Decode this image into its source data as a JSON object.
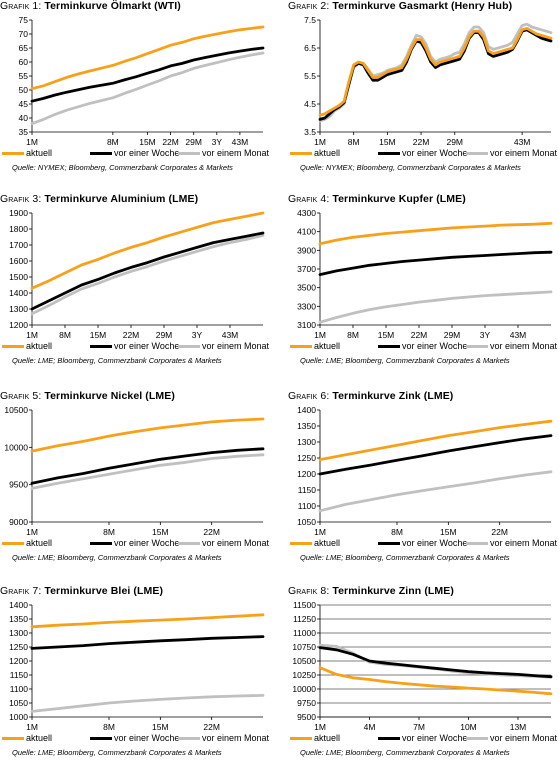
{
  "panels": [
    {
      "id": "g1",
      "prefix": "Grafik 1:",
      "title": "Terminkurve Ölmarkt (WTI)",
      "source": "Quelle: NYMEX; Bloomberg, Commerzbank Corporates & Markets"
    },
    {
      "id": "g2",
      "prefix": "Grafik 2:",
      "title": "Terminkurve Gasmarkt (Henry Hub)",
      "source": "Quelle: NYMEX; Bloomberg, Commerzbank Corporates & Markets"
    },
    {
      "id": "g3",
      "prefix": "Grafik 3:",
      "title": "Terminkurve Aluminium (LME)",
      "source": "Quelle: LME; Bloomberg, Commerzbank Corporates & Markets"
    },
    {
      "id": "g4",
      "prefix": "Grafik 4:",
      "title": "Terminkurve Kupfer (LME)",
      "source": "Quelle: LME; Bloomberg, Commerzbank Corporates & Markets"
    },
    {
      "id": "g5",
      "prefix": "Grafik 5:",
      "title": "Terminkurve Nickel (LME)",
      "source": "Quelle: LME; Bloomberg, Commerzbank Corporates & Markets"
    },
    {
      "id": "g6",
      "prefix": "Grafik 6:",
      "title": "Terminkurve Zink (LME)",
      "source": "Quelle: LME; Bloomberg, Commerzbank Corporates & Markets"
    },
    {
      "id": "g7",
      "prefix": "Grafik 7:",
      "title": "Terminkurve Blei (LME)",
      "source": "Quelle: LME; Bloomberg, Commerzbank Corporates & Markets"
    },
    {
      "id": "g8",
      "prefix": "Grafik 8:",
      "title": "Terminkurve Zinn (LME)",
      "source": "Quelle: LME; Bloomberg, Commerzbank Corporates & Markets"
    }
  ],
  "legend": [
    "aktuell",
    "vor einer Woche",
    "vor einem Monat"
  ],
  "colors": {
    "aktuell": "#f7a11a",
    "woche": "#000000",
    "monat": "#c0c0c0",
    "grid": "#000000"
  },
  "chart_data": [
    {
      "type": "line",
      "title": "Terminkurve Ölmarkt (WTI)",
      "x": [
        "1M",
        "2M",
        "3M",
        "4M",
        "5M",
        "6M",
        "7M",
        "8M",
        "10M",
        "12M",
        "15M",
        "18M",
        "22M",
        "25M",
        "29M",
        "32M",
        "3Y",
        "40M",
        "43M",
        "46M",
        "49M"
      ],
      "xticks": [
        "1M",
        "8M",
        "15M",
        "22M",
        "29M",
        "3Y",
        "43M"
      ],
      "ylim": [
        35,
        75
      ],
      "yticks": [
        35,
        40,
        45,
        50,
        55,
        60,
        65,
        70,
        75
      ],
      "grid": false,
      "series": [
        {
          "name": "aktuell",
          "values": [
            50.5,
            51.5,
            53,
            54.5,
            55.7,
            56.8,
            57.8,
            58.8,
            60.2,
            61.5,
            63,
            64.5,
            66,
            67,
            68.3,
            69.2,
            70,
            70.8,
            71.5,
            72,
            72.5
          ]
        },
        {
          "name": "vor einer Woche",
          "values": [
            46,
            47,
            48.2,
            49.2,
            50.1,
            51,
            51.7,
            52.4,
            53.6,
            54.7,
            56,
            57.2,
            58.6,
            59.5,
            60.7,
            61.6,
            62.4,
            63.2,
            63.9,
            64.5,
            65
          ]
        },
        {
          "name": "vor einem Monat",
          "values": [
            38,
            39.5,
            41.3,
            42.8,
            44,
            45.2,
            46.2,
            47.2,
            48.8,
            50.2,
            51.8,
            53.3,
            55,
            56.2,
            57.7,
            58.8,
            59.8,
            60.8,
            61.7,
            62.5,
            63.2
          ]
        }
      ]
    },
    {
      "type": "line",
      "title": "Terminkurve Gasmarkt (Henry Hub)",
      "x": [
        "1M",
        "2M",
        "3M",
        "4M",
        "5M",
        "6M",
        "7M",
        "8M",
        "9M",
        "10M",
        "11M",
        "12M",
        "13M",
        "14M",
        "15M",
        "16M",
        "17M",
        "18M",
        "19M",
        "20M",
        "21M",
        "22M",
        "23M",
        "24M",
        "25M",
        "26M",
        "27M",
        "28M",
        "29M",
        "30M",
        "31M",
        "32M",
        "33M",
        "34M",
        "35M",
        "36M",
        "37M",
        "38M",
        "39M",
        "40M",
        "41M",
        "42M",
        "43M",
        "44M",
        "45M",
        "46M",
        "47M",
        "48M",
        "49M"
      ],
      "xticks": [
        "1M",
        "8M",
        "15M",
        "22M",
        "29M",
        "3Y",
        "43M"
      ],
      "ylim": [
        3.5,
        7.5
      ],
      "yticks": [
        3.5,
        4.5,
        5.5,
        6.5,
        7.5
      ],
      "grid": false,
      "series": [
        {
          "name": "aktuell",
          "values": [
            4.1,
            4.15,
            4.25,
            4.35,
            4.45,
            4.6,
            5.3,
            5.9,
            6.0,
            5.95,
            5.7,
            5.45,
            5.45,
            5.55,
            5.65,
            5.7,
            5.75,
            5.8,
            6.1,
            6.5,
            6.8,
            6.8,
            6.5,
            6.1,
            5.9,
            6.0,
            6.05,
            6.1,
            6.15,
            6.2,
            6.5,
            6.9,
            7.1,
            7.1,
            6.9,
            6.4,
            6.3,
            6.35,
            6.4,
            6.45,
            6.5,
            6.8,
            7.15,
            7.2,
            7.1,
            7.0,
            6.95,
            6.9,
            6.85
          ]
        },
        {
          "name": "vor einer Woche",
          "values": [
            3.95,
            4.0,
            4.15,
            4.3,
            4.4,
            4.55,
            5.2,
            5.85,
            5.95,
            5.9,
            5.6,
            5.35,
            5.35,
            5.45,
            5.55,
            5.6,
            5.65,
            5.7,
            6.0,
            6.45,
            6.75,
            6.7,
            6.4,
            6.0,
            5.8,
            5.9,
            5.95,
            6.0,
            6.05,
            6.1,
            6.4,
            6.85,
            7.05,
            7.05,
            6.8,
            6.3,
            6.2,
            6.25,
            6.3,
            6.35,
            6.45,
            6.75,
            7.1,
            7.15,
            7.05,
            6.95,
            6.85,
            6.8,
            6.75
          ]
        },
        {
          "name": "vor einem Monat",
          "values": [
            3.9,
            3.95,
            4.05,
            4.25,
            4.35,
            4.5,
            5.25,
            5.8,
            5.95,
            5.95,
            5.75,
            5.5,
            5.55,
            5.6,
            5.7,
            5.75,
            5.8,
            5.9,
            6.2,
            6.6,
            6.95,
            6.9,
            6.65,
            6.2,
            6.0,
            6.1,
            6.15,
            6.2,
            6.3,
            6.35,
            6.65,
            7.05,
            7.25,
            7.25,
            7.05,
            6.55,
            6.45,
            6.5,
            6.55,
            6.6,
            6.7,
            7.0,
            7.3,
            7.35,
            7.25,
            7.2,
            7.15,
            7.1,
            7.05
          ]
        }
      ]
    },
    {
      "type": "line",
      "title": "Terminkurve Aluminium (LME)",
      "x": [
        "1M",
        "4M",
        "8M",
        "12M",
        "15M",
        "19M",
        "22M",
        "25M",
        "29M",
        "32M",
        "3Y",
        "40M",
        "43M",
        "46M",
        "49M"
      ],
      "xticks": [
        "1M",
        "8M",
        "15M",
        "22M",
        "29M",
        "3Y",
        "43M"
      ],
      "ylim": [
        1200,
        1900
      ],
      "yticks": [
        1200,
        1300,
        1400,
        1500,
        1600,
        1700,
        1800,
        1900
      ],
      "grid": false,
      "series": [
        {
          "name": "aktuell",
          "values": [
            1430,
            1475,
            1525,
            1575,
            1610,
            1650,
            1685,
            1715,
            1750,
            1780,
            1810,
            1840,
            1860,
            1880,
            1900
          ]
        },
        {
          "name": "vor einer Woche",
          "values": [
            1300,
            1350,
            1400,
            1450,
            1485,
            1525,
            1560,
            1590,
            1625,
            1655,
            1685,
            1715,
            1735,
            1755,
            1775
          ]
        },
        {
          "name": "vor einem Monat",
          "values": [
            1270,
            1320,
            1375,
            1425,
            1460,
            1500,
            1535,
            1565,
            1600,
            1630,
            1660,
            1690,
            1715,
            1735,
            1760
          ]
        }
      ]
    },
    {
      "type": "line",
      "title": "Terminkurve Kupfer (LME)",
      "x": [
        "1M",
        "4M",
        "8M",
        "12M",
        "15M",
        "19M",
        "22M",
        "25M",
        "29M",
        "32M",
        "3Y",
        "40M",
        "43M",
        "46M",
        "49M"
      ],
      "xticks": [
        "1M",
        "8M",
        "15M",
        "22M",
        "29M",
        "3Y",
        "43M"
      ],
      "ylim": [
        3100,
        4300
      ],
      "yticks": [
        3100,
        3300,
        3500,
        3700,
        3900,
        4100,
        4300
      ],
      "grid": false,
      "series": [
        {
          "name": "aktuell",
          "values": [
            3970,
            4010,
            4040,
            4060,
            4080,
            4095,
            4110,
            4125,
            4140,
            4150,
            4160,
            4170,
            4175,
            4180,
            4190
          ]
        },
        {
          "name": "vor einer Woche",
          "values": [
            3640,
            3680,
            3710,
            3740,
            3760,
            3780,
            3795,
            3810,
            3825,
            3835,
            3845,
            3855,
            3865,
            3875,
            3880
          ]
        },
        {
          "name": "vor einem Monat",
          "values": [
            3130,
            3180,
            3225,
            3265,
            3295,
            3320,
            3345,
            3365,
            3385,
            3400,
            3415,
            3425,
            3435,
            3445,
            3455
          ]
        }
      ]
    },
    {
      "type": "line",
      "title": "Terminkurve Nickel (LME)",
      "x": [
        "1M",
        "3M",
        "5M",
        "8M",
        "11M",
        "15M",
        "18M",
        "22M",
        "25M",
        "27M"
      ],
      "xticks": [
        "1M",
        "8M",
        "15M",
        "22M"
      ],
      "ylim": [
        9000,
        10500
      ],
      "yticks": [
        9000,
        9500,
        10000,
        10500
      ],
      "grid": false,
      "series": [
        {
          "name": "aktuell",
          "values": [
            9950,
            10020,
            10080,
            10150,
            10210,
            10260,
            10300,
            10340,
            10365,
            10380
          ]
        },
        {
          "name": "vor einer Woche",
          "values": [
            9520,
            9590,
            9650,
            9720,
            9780,
            9840,
            9885,
            9930,
            9960,
            9980
          ]
        },
        {
          "name": "vor einem Monat",
          "values": [
            9450,
            9520,
            9580,
            9640,
            9700,
            9760,
            9800,
            9850,
            9880,
            9900
          ]
        }
      ]
    },
    {
      "type": "line",
      "title": "Terminkurve Zink (LME)",
      "x": [
        "1M",
        "3M",
        "5M",
        "8M",
        "11M",
        "15M",
        "18M",
        "22M",
        "25M",
        "27M"
      ],
      "xticks": [
        "1M",
        "8M",
        "15M",
        "22M"
      ],
      "ylim": [
        1050,
        1400
      ],
      "yticks": [
        1050,
        1100,
        1150,
        1200,
        1250,
        1300,
        1350,
        1400
      ],
      "grid": false,
      "series": [
        {
          "name": "aktuell",
          "values": [
            1245,
            1260,
            1275,
            1290,
            1305,
            1320,
            1332,
            1345,
            1355,
            1365
          ]
        },
        {
          "name": "vor einer Woche",
          "values": [
            1200,
            1215,
            1228,
            1243,
            1257,
            1272,
            1285,
            1298,
            1310,
            1320
          ]
        },
        {
          "name": "vor einem Monat",
          "values": [
            1085,
            1105,
            1120,
            1135,
            1148,
            1160,
            1172,
            1185,
            1197,
            1207
          ]
        }
      ]
    },
    {
      "type": "line",
      "title": "Terminkurve Blei (LME)",
      "x": [
        "1M",
        "3M",
        "5M",
        "8M",
        "11M",
        "15M",
        "18M",
        "22M",
        "25M",
        "27M"
      ],
      "xticks": [
        "1M",
        "8M",
        "15M",
        "22M"
      ],
      "ylim": [
        1000,
        1400
      ],
      "yticks": [
        1000,
        1050,
        1100,
        1150,
        1200,
        1250,
        1300,
        1350,
        1400
      ],
      "grid": false,
      "series": [
        {
          "name": "aktuell",
          "values": [
            1322,
            1328,
            1332,
            1338,
            1342,
            1346,
            1350,
            1355,
            1360,
            1365
          ]
        },
        {
          "name": "vor einer Woche",
          "values": [
            1245,
            1250,
            1255,
            1262,
            1267,
            1272,
            1276,
            1281,
            1284,
            1287
          ]
        },
        {
          "name": "vor einem Monat",
          "values": [
            1020,
            1030,
            1040,
            1050,
            1057,
            1063,
            1068,
            1072,
            1075,
            1077
          ]
        }
      ]
    },
    {
      "type": "line",
      "title": "Terminkurve Zinn (LME)",
      "x": [
        "1M",
        "2M",
        "3M",
        "4M",
        "5M",
        "6M",
        "7M",
        "8M",
        "9M",
        "10M",
        "11M",
        "12M",
        "13M",
        "14M",
        "15M"
      ],
      "xticks": [
        "1M",
        "4M",
        "7M",
        "10M",
        "13M"
      ],
      "ylim": [
        9500,
        11500
      ],
      "yticks": [
        9500,
        9750,
        10000,
        10250,
        10500,
        10750,
        11000,
        11250,
        11500
      ],
      "grid": true,
      "series": [
        {
          "name": "aktuell",
          "values": [
            10380,
            10260,
            10200,
            10170,
            10130,
            10100,
            10075,
            10050,
            10035,
            10015,
            10000,
            9980,
            9960,
            9940,
            9915
          ]
        },
        {
          "name": "vor einer Woche",
          "values": [
            10740,
            10700,
            10620,
            10500,
            10460,
            10430,
            10400,
            10370,
            10340,
            10310,
            10290,
            10275,
            10260,
            10240,
            10220
          ]
        },
        {
          "name": "vor einem Monat",
          "values": [
            10780,
            10760,
            10640,
            10480,
            10440,
            10420,
            10390,
            10360,
            10320,
            10290,
            10270,
            10250,
            10240,
            10225,
            10210
          ]
        }
      ]
    }
  ]
}
